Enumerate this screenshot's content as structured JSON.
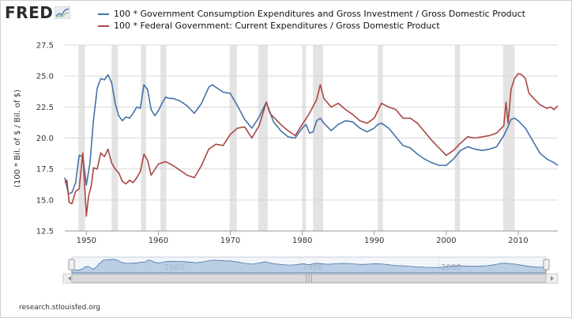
{
  "logo": {
    "text": "FRED"
  },
  "source": "research.stlouisfed.org",
  "colors": {
    "series1": "#4572a7",
    "series2": "#aa4643",
    "recession": "#e3e3e3",
    "navigator_fill": "#a9c0de"
  },
  "chart_data": {
    "type": "line",
    "title": "",
    "xlabel": "",
    "ylabel": "(100 * Bil. of $ / Bil. of $)",
    "xlim": [
      1947,
      2015.5
    ],
    "ylim": [
      12.5,
      27.5
    ],
    "yticks": [
      "12.5",
      "15.0",
      "17.5",
      "20.0",
      "22.5",
      "25.0",
      "27.5"
    ],
    "xticks": [
      "1950",
      "1960",
      "1970",
      "1980",
      "1990",
      "2000",
      "2010"
    ],
    "grid": "horizontal",
    "legend_position": "top",
    "recessions": [
      [
        1948.9,
        1949.8
      ],
      [
        1953.5,
        1954.4
      ],
      [
        1957.6,
        1958.3
      ],
      [
        1960.3,
        1961.1
      ],
      [
        1969.9,
        1970.9
      ],
      [
        1973.9,
        1975.2
      ],
      [
        1980.0,
        1980.5
      ],
      [
        1981.5,
        1982.9
      ],
      [
        1990.5,
        1991.2
      ],
      [
        2001.2,
        2001.9
      ],
      [
        2007.9,
        2009.5
      ]
    ],
    "series": [
      {
        "name": "100 * Government Consumption Expenditures and Gross Investment / Gross Domestic Product",
        "color": "#4572a7",
        "x": [
          1947.0,
          1947.5,
          1948.0,
          1948.5,
          1949.0,
          1949.5,
          1950.0,
          1950.5,
          1951.0,
          1951.5,
          1952.0,
          1952.5,
          1953.0,
          1953.5,
          1954.0,
          1954.5,
          1955.0,
          1955.5,
          1956.0,
          1956.5,
          1957.0,
          1957.5,
          1958.0,
          1958.5,
          1959.0,
          1959.5,
          1960.0,
          1960.5,
          1961.0,
          1961.5,
          1962.0,
          1963.0,
          1964.0,
          1965.0,
          1966.0,
          1967.0,
          1967.5,
          1968.0,
          1969.0,
          1970.0,
          1971.0,
          1972.0,
          1973.0,
          1974.0,
          1974.5,
          1975.0,
          1976.0,
          1977.0,
          1978.0,
          1979.0,
          1980.0,
          1980.5,
          1981.0,
          1981.5,
          1982.0,
          1982.5,
          1983.0,
          1984.0,
          1985.0,
          1986.0,
          1987.0,
          1988.0,
          1989.0,
          1990.0,
          1990.5,
          1991.0,
          1991.5,
          1992.0,
          1993.0,
          1994.0,
          1995.0,
          1996.0,
          1997.0,
          1998.0,
          1999.0,
          2000.0,
          2001.0,
          2002.0,
          2003.0,
          2004.0,
          2005.0,
          2006.0,
          2007.0,
          2008.0,
          2008.5,
          2009.0,
          2009.5,
          2010.0,
          2011.0,
          2012.0,
          2013.0,
          2014.0,
          2015.0,
          2015.5
        ],
        "values": [
          16.8,
          15.5,
          15.6,
          16.4,
          18.6,
          18.5,
          16.2,
          18.0,
          21.5,
          24.0,
          24.8,
          24.7,
          25.1,
          24.5,
          22.8,
          21.8,
          21.4,
          21.7,
          21.6,
          22.0,
          22.5,
          22.4,
          24.3,
          23.9,
          22.3,
          21.8,
          22.2,
          22.8,
          23.3,
          23.2,
          23.2,
          23.0,
          22.6,
          22.0,
          22.8,
          24.1,
          24.3,
          24.1,
          23.7,
          23.6,
          22.6,
          21.5,
          20.8,
          21.7,
          22.3,
          22.9,
          21.3,
          20.6,
          20.1,
          20.0,
          20.8,
          21.1,
          20.4,
          20.5,
          21.4,
          21.6,
          21.2,
          20.6,
          21.1,
          21.4,
          21.3,
          20.8,
          20.5,
          20.8,
          21.1,
          21.2,
          21.0,
          20.8,
          20.1,
          19.4,
          19.2,
          18.7,
          18.3,
          18.0,
          17.8,
          17.8,
          18.3,
          19.0,
          19.3,
          19.1,
          19.0,
          19.1,
          19.3,
          20.2,
          20.8,
          21.5,
          21.6,
          21.4,
          20.8,
          19.8,
          18.8,
          18.3,
          18.0,
          17.8
        ]
      },
      {
        "name": "100 * Federal Government: Current Expenditures / Gross Domestic Product",
        "color": "#aa4643",
        "x": [
          1947.0,
          1947.3,
          1947.6,
          1948.0,
          1948.5,
          1949.0,
          1949.5,
          1950.0,
          1950.3,
          1950.7,
          1951.0,
          1951.5,
          1952.0,
          1952.5,
          1953.0,
          1953.5,
          1954.0,
          1954.5,
          1955.0,
          1955.5,
          1956.0,
          1956.5,
          1957.0,
          1957.5,
          1958.0,
          1958.5,
          1959.0,
          1960.0,
          1961.0,
          1962.0,
          1963.0,
          1964.0,
          1965.0,
          1966.0,
          1967.0,
          1968.0,
          1969.0,
          1970.0,
          1971.0,
          1972.0,
          1973.0,
          1974.0,
          1975.0,
          1975.5,
          1976.0,
          1977.0,
          1978.0,
          1979.0,
          1980.0,
          1981.0,
          1982.0,
          1982.5,
          1983.0,
          1984.0,
          1985.0,
          1986.0,
          1987.0,
          1988.0,
          1989.0,
          1990.0,
          1991.0,
          1992.0,
          1993.0,
          1994.0,
          1995.0,
          1996.0,
          1997.0,
          1998.0,
          1999.0,
          2000.0,
          2001.0,
          2002.0,
          2003.0,
          2004.0,
          2005.0,
          2006.0,
          2007.0,
          2008.0,
          2008.3,
          2008.6,
          2009.0,
          2009.5,
          2010.0,
          2010.5,
          2011.0,
          2011.5,
          2012.0,
          2013.0,
          2014.0,
          2014.5,
          2015.0,
          2015.5
        ],
        "values": [
          16.4,
          16.6,
          14.8,
          14.7,
          15.7,
          15.9,
          18.8,
          13.7,
          15.3,
          16.2,
          17.6,
          17.5,
          18.8,
          18.5,
          19.1,
          18.0,
          17.5,
          17.2,
          16.5,
          16.3,
          16.6,
          16.4,
          16.8,
          17.3,
          18.7,
          18.2,
          17.0,
          17.9,
          18.1,
          17.8,
          17.4,
          17.0,
          16.8,
          17.8,
          19.1,
          19.5,
          19.4,
          20.3,
          20.8,
          20.9,
          20.0,
          21.0,
          22.9,
          22.0,
          21.7,
          21.1,
          20.6,
          20.2,
          21.1,
          22.0,
          23.1,
          24.3,
          23.2,
          22.5,
          22.8,
          22.3,
          21.9,
          21.4,
          21.2,
          21.6,
          22.8,
          22.5,
          22.3,
          21.6,
          21.6,
          21.2,
          20.5,
          19.8,
          19.2,
          18.6,
          19.0,
          19.6,
          20.1,
          20.0,
          20.1,
          20.2,
          20.4,
          21.0,
          22.9,
          21.2,
          23.9,
          24.8,
          25.2,
          25.1,
          24.8,
          23.6,
          23.3,
          22.7,
          22.4,
          22.5,
          22.3,
          22.6
        ]
      }
    ]
  },
  "navigator": {
    "ticks": [
      "1960",
      "1980",
      "2000"
    ],
    "grip": "|||"
  }
}
